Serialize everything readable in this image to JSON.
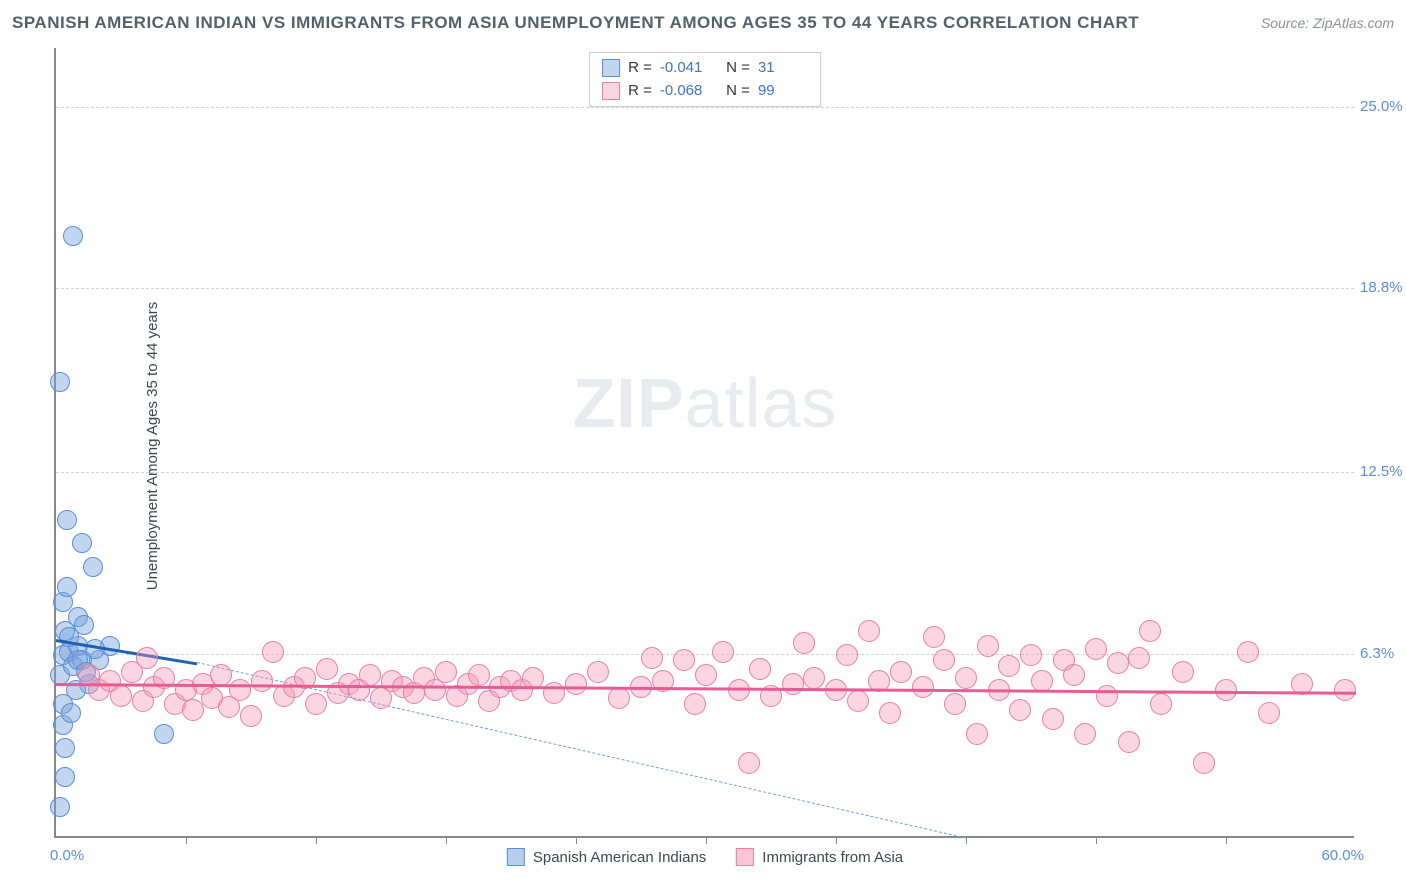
{
  "title": "SPANISH AMERICAN INDIAN VS IMMIGRANTS FROM ASIA UNEMPLOYMENT AMONG AGES 35 TO 44 YEARS CORRELATION CHART",
  "source": "Source: ZipAtlas.com",
  "ylabel": "Unemployment Among Ages 35 to 44 years",
  "watermark_bold": "ZIP",
  "watermark_light": "atlas",
  "chart": {
    "type": "scatter",
    "background_color": "#ffffff",
    "grid_color": "#d0d0d0",
    "axis_color": "#888888",
    "xlim": [
      0,
      60
    ],
    "ylim": [
      0,
      27
    ],
    "x_origin_label": "0.0%",
    "x_max_label": "60.0%",
    "y_ticks": [
      {
        "v": 6.3,
        "label": "6.3%"
      },
      {
        "v": 12.5,
        "label": "12.5%"
      },
      {
        "v": 18.8,
        "label": "18.8%"
      },
      {
        "v": 25.0,
        "label": "25.0%"
      }
    ],
    "x_tick_marks": [
      6,
      12,
      18,
      24,
      30,
      36,
      42,
      48,
      54
    ],
    "series": [
      {
        "name": "Spanish American Indians",
        "fill": "rgba(120,165,220,0.45)",
        "stroke": "#5a8fd6",
        "marker_r": 10,
        "r_label": "R = ",
        "r_value": "-0.041",
        "n_label": "N = ",
        "n_value": "31",
        "trend": {
          "x1": 0,
          "y1": 6.8,
          "x2": 6.5,
          "y2": 6.0,
          "color": "#1f61b3",
          "width": 3,
          "dash": false
        },
        "trend_ext": {
          "x1": 6.5,
          "y1": 6.0,
          "x2": 42,
          "y2": 0,
          "color": "#6fa1db",
          "width": 1,
          "dash": true
        },
        "points": [
          [
            0.3,
            6.2
          ],
          [
            0.2,
            5.5
          ],
          [
            0.3,
            4.5
          ],
          [
            0.4,
            7.0
          ],
          [
            0.3,
            8.0
          ],
          [
            0.6,
            6.3
          ],
          [
            0.8,
            5.8
          ],
          [
            1.0,
            6.5
          ],
          [
            0.4,
            2.0
          ],
          [
            0.4,
            3.0
          ],
          [
            0.3,
            3.8
          ],
          [
            0.2,
            1.0
          ],
          [
            1.2,
            6.0
          ],
          [
            1.5,
            5.2
          ],
          [
            1.0,
            7.5
          ],
          [
            2.0,
            6.0
          ],
          [
            2.5,
            6.5
          ],
          [
            0.5,
            10.8
          ],
          [
            1.2,
            10.0
          ],
          [
            1.7,
            9.2
          ],
          [
            0.5,
            8.5
          ],
          [
            0.2,
            15.5
          ],
          [
            0.8,
            20.5
          ],
          [
            5.0,
            3.5
          ],
          [
            1.8,
            6.4
          ],
          [
            0.9,
            5.0
          ],
          [
            0.7,
            4.2
          ],
          [
            1.3,
            7.2
          ],
          [
            0.6,
            6.8
          ],
          [
            1.0,
            6.0
          ],
          [
            1.4,
            5.6
          ]
        ]
      },
      {
        "name": "Immigrants from Asia",
        "fill": "rgba(245,150,180,0.40)",
        "stroke": "#e87fa4",
        "marker_r": 11,
        "r_label": "R = ",
        "r_value": "-0.068",
        "n_label": "N = ",
        "n_value": "99",
        "trend": {
          "x1": 0,
          "y1": 5.3,
          "x2": 60,
          "y2": 5.0,
          "color": "#e85c94",
          "width": 3,
          "dash": false
        },
        "points": [
          [
            1.5,
            5.5
          ],
          [
            2.0,
            5.0
          ],
          [
            2.5,
            5.3
          ],
          [
            3.0,
            4.8
          ],
          [
            3.5,
            5.6
          ],
          [
            4.0,
            4.6
          ],
          [
            4.5,
            5.1
          ],
          [
            5.0,
            5.4
          ],
          [
            5.5,
            4.5
          ],
          [
            6.0,
            5.0
          ],
          [
            6.3,
            4.3
          ],
          [
            6.8,
            5.2
          ],
          [
            7.2,
            4.7
          ],
          [
            7.6,
            5.5
          ],
          [
            8.0,
            4.4
          ],
          [
            8.5,
            5.0
          ],
          [
            9.0,
            4.1
          ],
          [
            9.5,
            5.3
          ],
          [
            10.0,
            6.3
          ],
          [
            10.5,
            4.8
          ],
          [
            11.0,
            5.1
          ],
          [
            11.5,
            5.4
          ],
          [
            12.0,
            4.5
          ],
          [
            12.5,
            5.7
          ],
          [
            13.0,
            4.9
          ],
          [
            13.5,
            5.2
          ],
          [
            14.0,
            5.0
          ],
          [
            14.5,
            5.5
          ],
          [
            15.0,
            4.7
          ],
          [
            15.5,
            5.3
          ],
          [
            16.0,
            5.1
          ],
          [
            16.5,
            4.9
          ],
          [
            17.0,
            5.4
          ],
          [
            17.5,
            5.0
          ],
          [
            18.0,
            5.6
          ],
          [
            18.5,
            4.8
          ],
          [
            19.0,
            5.2
          ],
          [
            19.5,
            5.5
          ],
          [
            20.0,
            4.6
          ],
          [
            20.5,
            5.1
          ],
          [
            21.0,
            5.3
          ],
          [
            21.5,
            5.0
          ],
          [
            22.0,
            5.4
          ],
          [
            23.0,
            4.9
          ],
          [
            24.0,
            5.2
          ],
          [
            25.0,
            5.6
          ],
          [
            26.0,
            4.7
          ],
          [
            27.0,
            5.1
          ],
          [
            27.5,
            6.1
          ],
          [
            28.0,
            5.3
          ],
          [
            29.0,
            6.0
          ],
          [
            29.5,
            4.5
          ],
          [
            30.0,
            5.5
          ],
          [
            30.8,
            6.3
          ],
          [
            31.5,
            5.0
          ],
          [
            32.0,
            2.5
          ],
          [
            32.5,
            5.7
          ],
          [
            33.0,
            4.8
          ],
          [
            34.0,
            5.2
          ],
          [
            34.5,
            6.6
          ],
          [
            35.0,
            5.4
          ],
          [
            36.0,
            5.0
          ],
          [
            36.5,
            6.2
          ],
          [
            37.0,
            4.6
          ],
          [
            37.5,
            7.0
          ],
          [
            38.0,
            5.3
          ],
          [
            38.5,
            4.2
          ],
          [
            39.0,
            5.6
          ],
          [
            40.0,
            5.1
          ],
          [
            40.5,
            6.8
          ],
          [
            41.0,
            6.0
          ],
          [
            41.5,
            4.5
          ],
          [
            42.0,
            5.4
          ],
          [
            42.5,
            3.5
          ],
          [
            43.0,
            6.5
          ],
          [
            43.5,
            5.0
          ],
          [
            44.0,
            5.8
          ],
          [
            44.5,
            4.3
          ],
          [
            45.0,
            6.2
          ],
          [
            45.5,
            5.3
          ],
          [
            46.0,
            4.0
          ],
          [
            46.5,
            6.0
          ],
          [
            47.0,
            5.5
          ],
          [
            47.5,
            3.5
          ],
          [
            48.0,
            6.4
          ],
          [
            48.5,
            4.8
          ],
          [
            49.0,
            5.9
          ],
          [
            49.5,
            3.2
          ],
          [
            50.0,
            6.1
          ],
          [
            50.5,
            7.0
          ],
          [
            51.0,
            4.5
          ],
          [
            52.0,
            5.6
          ],
          [
            53.0,
            2.5
          ],
          [
            54.0,
            5.0
          ],
          [
            55.0,
            6.3
          ],
          [
            56.0,
            4.2
          ],
          [
            57.5,
            5.2
          ],
          [
            59.5,
            5.0
          ],
          [
            4.2,
            6.1
          ]
        ]
      }
    ]
  },
  "legend_bottom": [
    {
      "label": "Spanish American Indians",
      "fill": "rgba(120,165,220,0.55)",
      "stroke": "#5a8fd6"
    },
    {
      "label": "Immigrants from Asia",
      "fill": "rgba(245,150,180,0.55)",
      "stroke": "#e87fa4"
    }
  ],
  "colors": {
    "title_text": "#54606a",
    "source_text": "#8a9199",
    "tick_text": "#5a8fd6",
    "stat_value": "#3a76c4"
  }
}
